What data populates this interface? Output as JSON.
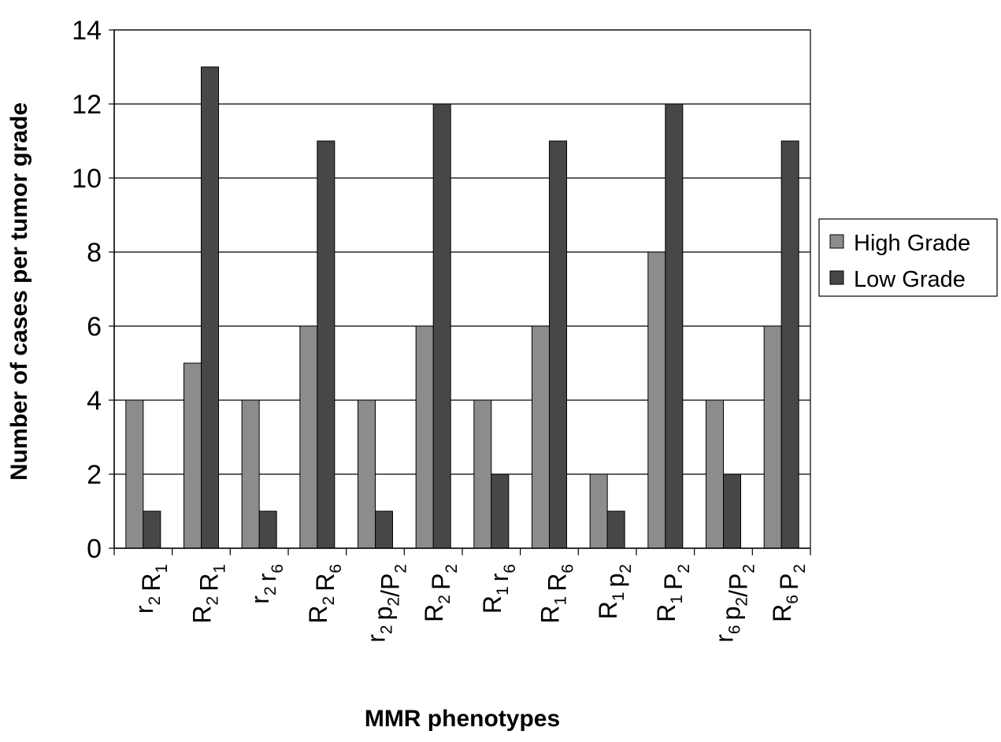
{
  "chart_data": {
    "type": "bar",
    "categories": [
      {
        "parts": [
          [
            "r",
            "2"
          ],
          [
            "R",
            "1"
          ]
        ]
      },
      {
        "parts": [
          [
            "R",
            "2"
          ],
          [
            "R",
            "1"
          ]
        ]
      },
      {
        "parts": [
          [
            "r",
            "2"
          ],
          [
            "r",
            "6"
          ]
        ]
      },
      {
        "parts": [
          [
            "R",
            "2"
          ],
          [
            "R",
            "6"
          ]
        ]
      },
      {
        "parts": [
          [
            "r",
            "2"
          ],
          [
            "p",
            "2"
          ],
          [
            "/P",
            "2"
          ]
        ]
      },
      {
        "parts": [
          [
            "R",
            "2"
          ],
          [
            "P",
            "2"
          ]
        ]
      },
      {
        "parts": [
          [
            "R",
            "1"
          ],
          [
            "r",
            "6"
          ]
        ]
      },
      {
        "parts": [
          [
            "R",
            "1"
          ],
          [
            "R",
            "6"
          ]
        ]
      },
      {
        "parts": [
          [
            "R",
            "1"
          ],
          [
            "p",
            "2"
          ]
        ]
      },
      {
        "parts": [
          [
            "R",
            "1"
          ],
          [
            "P",
            "2"
          ]
        ]
      },
      {
        "parts": [
          [
            "r",
            "6"
          ],
          [
            "p",
            "2"
          ],
          [
            "/P",
            "2"
          ]
        ]
      },
      {
        "parts": [
          [
            "R",
            "6"
          ],
          [
            "P",
            "2"
          ]
        ]
      }
    ],
    "series": [
      {
        "name": "High Grade",
        "color": "#8c8c8c",
        "values": [
          4,
          5,
          4,
          6,
          4,
          6,
          4,
          6,
          2,
          8,
          4,
          6
        ]
      },
      {
        "name": "Low Grade",
        "color": "#474747",
        "values": [
          1,
          13,
          1,
          11,
          1,
          12,
          2,
          11,
          1,
          12,
          2,
          11
        ]
      }
    ],
    "xlabel": "MMR phenotypes",
    "ylabel": "Number of cases per tumor grade",
    "ylim": [
      0,
      14
    ],
    "yticks": [
      0,
      2,
      4,
      6,
      8,
      10,
      12,
      14
    ],
    "grid": true,
    "legend_position": "right"
  }
}
